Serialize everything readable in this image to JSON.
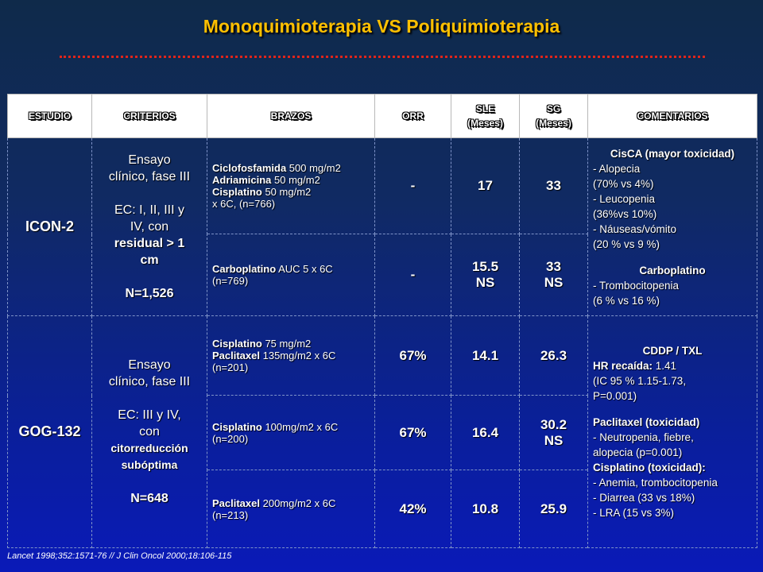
{
  "title": "Monoquimioterapia VS Poliquimioterapia",
  "headers": {
    "estudio": "ESTUDIO",
    "criterios": "CRITERIOS",
    "brazos": "BRAZOS",
    "orr": "ORR",
    "sle_1": "SLE",
    "sle_2": "(Meses)",
    "sg_1": "SG",
    "sg_2": "(Meses)",
    "comentarios": "COMENTARIOS"
  },
  "icon2": {
    "study": "ICON-2",
    "criteria": {
      "l1": "Ensayo",
      "l2": "clínico, fase III",
      "l3": "EC: I, II, III y",
      "l4": "IV, con",
      "l5": "residual > 1",
      "l6": "cm",
      "l7": "N=1,526"
    },
    "arm1": {
      "d1": "Ciclofosfamida",
      "v1": " 500 mg/m2",
      "d2": "Adriamicina",
      "v2": " 50 mg/m2",
      "d3": "Cisplatino",
      "v3": " 50 mg/m2",
      "l4": "x 6C, (n=766)",
      "orr": "-",
      "sle": "17",
      "sg": "33"
    },
    "arm2": {
      "d1": "Carboplatino",
      "v1": " AUC 5 x 6C",
      "l2": "(n=769)",
      "orr": "-",
      "sle": "15.5",
      "sle_sig": "NS",
      "sg": "33",
      "sg_sig": "NS"
    },
    "comments": {
      "h1": "CisCA (mayor toxicidad)",
      "c1": "- Alopecia",
      "c2": "(70% vs 4%)",
      "c3": "- Leucopenia",
      "c4": "(36%vs 10%)",
      "c5": "- Náuseas/vómito",
      "c6": "(20 % vs 9 %)",
      "h2": "Carboplatino",
      "c7": "- Trombocitopenia",
      "c8": "(6 % vs 16 %)"
    }
  },
  "gog132": {
    "study": "GOG-132",
    "criteria": {
      "l1": "Ensayo",
      "l2": "clínico, fase III",
      "l3": "EC: III y IV,",
      "l4": "con",
      "l5": "citorreducción",
      "l6": "subóptima",
      "l7": "N=648"
    },
    "arm1": {
      "d1": "Cisplatino",
      "v1": " 75 mg/m2",
      "d2": "Paclitaxel",
      "v2": " 135mg/m2 x 6C",
      "l3": "(n=201)",
      "orr": "67%",
      "sle": "14.1",
      "sg": "26.3"
    },
    "arm2": {
      "d1": "Cisplatino",
      "v1": " 100mg/m2 x 6C",
      "l2": "(n=200)",
      "orr": "67%",
      "sle": "16.4",
      "sg": "30.2",
      "sg_sig": "NS"
    },
    "arm3": {
      "d1": "Paclitaxel",
      "v1": " 200mg/m2 x 6C",
      "l2": "(n=213)",
      "orr": "42%",
      "sle": "10.8",
      "sg": "25.9"
    },
    "comments": {
      "h1": "CDDP / TXL",
      "hr_label": "HR recaída:",
      "hr_value": " 1.41",
      "c1": "(IC 95 % 1.15-1.73,",
      "c2": "P=0.001)",
      "p_label": "Paclitaxel (toxicidad)",
      "c3": "- Neutropenia, fiebre,",
      "c4": "alopecia (p=0.001)",
      "cis_label": "Cisplatino (toxicidad):",
      "c5": "- Anemia, trombocitopenia",
      "c6": "- Diarrea (33 vs 18%)",
      "c7": "- LRA (15 vs 3%)"
    }
  },
  "footer": "Lancet 1998;352:1571-76 // J Clin Oncol 2000;18:106-115"
}
